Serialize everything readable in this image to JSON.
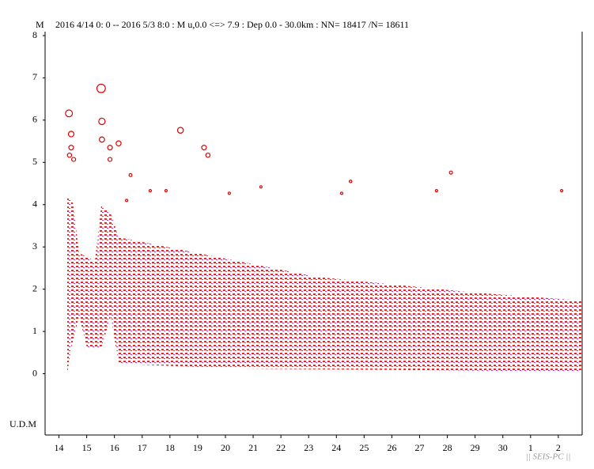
{
  "chart_data": {
    "type": "scatter",
    "y_label_top": "M",
    "title": "2016 4/14 0: 0 -- 2016 5/3 8:0  : M u,0.0 <=> 7.9   : Dep 0.0 - 30.0km :  NN= 18417 /N= 18611",
    "y_label_bottom": "U.D.M",
    "watermark": "|| SEIS-PC ||",
    "color": "#e00000",
    "xlim": [
      0,
      19.33
    ],
    "ylim": [
      -1.45,
      8
    ],
    "yticks": [
      0,
      1,
      2,
      3,
      4,
      5,
      6,
      7,
      8
    ],
    "xticks": [
      {
        "value": 0.5,
        "label": "14"
      },
      {
        "value": 1.5,
        "label": "15"
      },
      {
        "value": 2.5,
        "label": "16"
      },
      {
        "value": 3.5,
        "label": "17"
      },
      {
        "value": 4.5,
        "label": "18"
      },
      {
        "value": 5.5,
        "label": "19"
      },
      {
        "value": 6.5,
        "label": "20"
      },
      {
        "value": 7.5,
        "label": "21"
      },
      {
        "value": 8.5,
        "label": "22"
      },
      {
        "value": 9.5,
        "label": "23"
      },
      {
        "value": 10.5,
        "label": "24"
      },
      {
        "value": 11.5,
        "label": "25"
      },
      {
        "value": 12.5,
        "label": "26"
      },
      {
        "value": 13.5,
        "label": "27"
      },
      {
        "value": 14.5,
        "label": "28"
      },
      {
        "value": 15.5,
        "label": "29"
      },
      {
        "value": 16.5,
        "label": "30"
      },
      {
        "value": 17.5,
        "label": "1"
      },
      {
        "value": 18.5,
        "label": "2"
      }
    ],
    "x": [
      0.86,
      2.02,
      0.94,
      0.94,
      0.88,
      1.03,
      2.05,
      2.05,
      2.65,
      2.34,
      2.34,
      4.88,
      5.73,
      5.87,
      14.63,
      18.62,
      14.11,
      11.01,
      10.69,
      7.78,
      6.64,
      4.36,
      3.79,
      3.08,
      2.94
    ],
    "values": [
      6.16,
      6.75,
      5.67,
      5.35,
      5.17,
      5.07,
      5.97,
      5.54,
      5.45,
      5.35,
      5.07,
      5.76,
      5.35,
      5.17,
      4.76,
      4.33,
      4.33,
      4.55,
      4.27,
      4.42,
      4.27,
      4.33,
      4.33,
      4.7,
      4.1
    ]
  }
}
